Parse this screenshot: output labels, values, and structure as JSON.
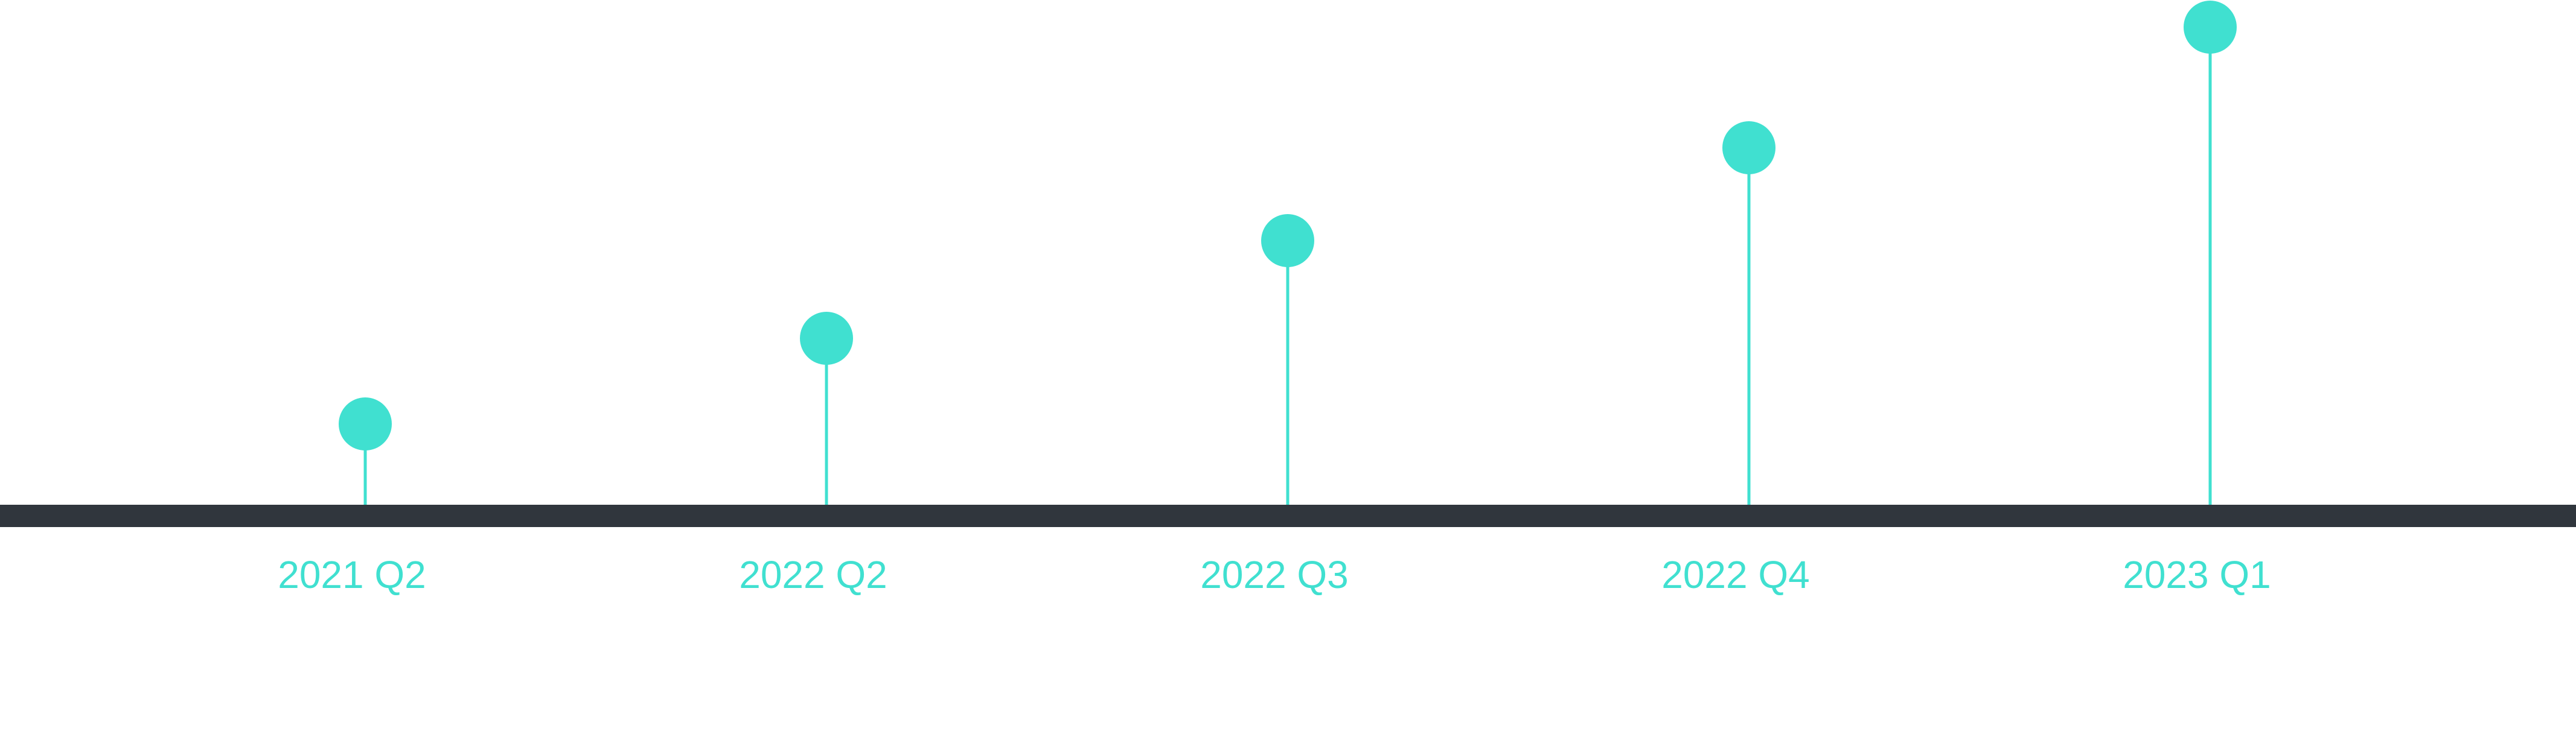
{
  "timeline": {
    "milestones": [
      {
        "label": "2021 Q2",
        "level": 1
      },
      {
        "label": "2022 Q2",
        "level": 2
      },
      {
        "label": "2022 Q3",
        "level": 3
      },
      {
        "label": "2022 Q4",
        "level": 4
      },
      {
        "label": "2023 Q1",
        "level": 5
      }
    ],
    "colors": {
      "accent": "#40e0d0",
      "axis": "#30363d",
      "background": "#ffffff"
    }
  }
}
